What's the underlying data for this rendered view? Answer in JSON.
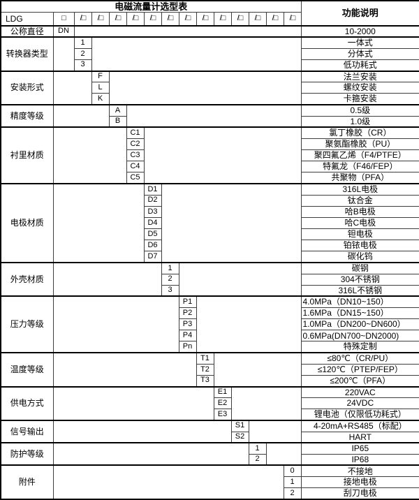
{
  "table": {
    "title": "电磁流量计选型表",
    "function_header": "功能说明",
    "model_code": "LDG",
    "model_box": "□",
    "model_slots": [
      "/□",
      "/□",
      "/□",
      "/□",
      "/□",
      "/□",
      "/□",
      "/□",
      "/□",
      "/□",
      "/□",
      "/□",
      "/□"
    ],
    "groups": [
      {
        "label": "公称直径",
        "code_column": 0,
        "options": [
          {
            "code": "DN",
            "desc": "10-2000"
          }
        ]
      },
      {
        "label": "转换器类型",
        "code_column": 1,
        "options": [
          {
            "code": "1",
            "desc": "一体式"
          },
          {
            "code": "2",
            "desc": "分体式"
          },
          {
            "code": "3",
            "desc": "低功耗式"
          }
        ]
      },
      {
        "label": "安装形式",
        "code_column": 2,
        "options": [
          {
            "code": "F",
            "desc": "法兰安装"
          },
          {
            "code": "L",
            "desc": "螺纹安装"
          },
          {
            "code": "K",
            "desc": "卡箍安装"
          }
        ]
      },
      {
        "label": "精度等级",
        "code_column": 3,
        "options": [
          {
            "code": "A",
            "desc": "0.5级"
          },
          {
            "code": "B",
            "desc": "1.0级"
          }
        ]
      },
      {
        "label": "衬里材质",
        "code_column": 4,
        "options": [
          {
            "code": "C1",
            "desc": "氯丁橡胶（CR）"
          },
          {
            "code": "C2",
            "desc": "聚氨酯橡胶（PU）"
          },
          {
            "code": "C3",
            "desc": "聚四氟乙烯（F4/PTFE）"
          },
          {
            "code": "C4",
            "desc": "特氟龙（F46/FEP）"
          },
          {
            "code": "C5",
            "desc": "共聚物（PFA）"
          }
        ]
      },
      {
        "label": "电极材质",
        "code_column": 5,
        "options": [
          {
            "code": "D1",
            "desc": "316L电极"
          },
          {
            "code": "D2",
            "desc": "钛合金"
          },
          {
            "code": "D3",
            "desc": "哈B电极"
          },
          {
            "code": "D4",
            "desc": "哈C电极"
          },
          {
            "code": "D5",
            "desc": "钽电极"
          },
          {
            "code": "D6",
            "desc": "铂铱电极"
          },
          {
            "code": "D7",
            "desc": "碳化钨"
          }
        ]
      },
      {
        "label": "外壳材质",
        "code_column": 6,
        "options": [
          {
            "code": "1",
            "desc": "碳钢"
          },
          {
            "code": "2",
            "desc": "304不锈钢"
          },
          {
            "code": "3",
            "desc": "316L不锈钢"
          }
        ]
      },
      {
        "label": "压力等级",
        "code_column": 7,
        "options": [
          {
            "code": "P1",
            "desc": "4.0MPa（DN10~150）",
            "desc_align": "left"
          },
          {
            "code": "P2",
            "desc": "1.6MPa（DN15~150）",
            "desc_align": "left"
          },
          {
            "code": "P3",
            "desc": "1.0MPa（DN200~DN600）",
            "desc_align": "left"
          },
          {
            "code": "P4",
            "desc": "0.6MPa(DN700~DN2000)",
            "desc_align": "left"
          },
          {
            "code": "Pn",
            "desc": "特殊定制"
          }
        ]
      },
      {
        "label": "温度等级",
        "code_column": 8,
        "options": [
          {
            "code": "T1",
            "desc": "≤80℃（CR/PU）"
          },
          {
            "code": "T2",
            "desc": "≤120℃（PTEP/FEP）"
          },
          {
            "code": "T3",
            "desc": "≤200℃（PFA）"
          }
        ]
      },
      {
        "label": "供电方式",
        "code_column": 9,
        "options": [
          {
            "code": "E1",
            "desc": "220VAC"
          },
          {
            "code": "E2",
            "desc": "24VDC"
          },
          {
            "code": "E3",
            "desc": "锂电池（仅限低功耗式）"
          }
        ]
      },
      {
        "label": "信号输出",
        "code_column": 10,
        "options": [
          {
            "code": "S1",
            "desc": "4-20mA+RS485（标配）"
          },
          {
            "code": "S2",
            "desc": "HART"
          }
        ]
      },
      {
        "label": "防护等级",
        "code_column": 11,
        "options": [
          {
            "code": "1",
            "desc": "IP65"
          },
          {
            "code": "2",
            "desc": "IP68"
          }
        ]
      },
      {
        "label": "附件",
        "code_column": 13,
        "options": [
          {
            "code": "0",
            "desc": "不接地"
          },
          {
            "code": "1",
            "desc": "接地电极"
          },
          {
            "code": "2",
            "desc": "刮刀电极"
          }
        ]
      }
    ]
  }
}
